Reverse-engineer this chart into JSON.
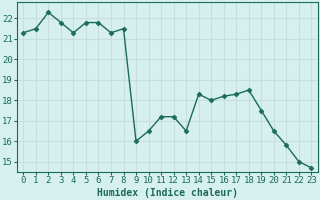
{
  "x": [
    0,
    1,
    2,
    3,
    4,
    5,
    6,
    7,
    8,
    9,
    10,
    11,
    12,
    13,
    14,
    15,
    16,
    17,
    18,
    19,
    20,
    21,
    22,
    23
  ],
  "y": [
    21.3,
    21.5,
    22.3,
    21.8,
    21.3,
    21.8,
    21.8,
    21.3,
    21.5,
    16.0,
    16.5,
    17.2,
    17.2,
    16.5,
    18.3,
    18.0,
    18.2,
    18.3,
    18.5,
    17.5,
    16.5,
    15.8,
    15.0,
    14.7
  ],
  "line_color": "#1a6b5a",
  "marker": "D",
  "marker_size": 2.5,
  "line_width": 1.0,
  "xlabel": "Humidex (Indice chaleur)",
  "xlabel_fontsize": 7,
  "xlabel_color": "#1a6b5a",
  "yticks": [
    15,
    16,
    17,
    18,
    19,
    20,
    21,
    22
  ],
  "xlim": [
    -0.5,
    23.5
  ],
  "ylim": [
    14.5,
    22.8
  ],
  "bg_color": "#d6f0ee",
  "grid_color": "#c8dede",
  "tick_label_fontsize": 6.5,
  "tick_color": "#1a6b5a",
  "spine_color": "#1a6b5a"
}
